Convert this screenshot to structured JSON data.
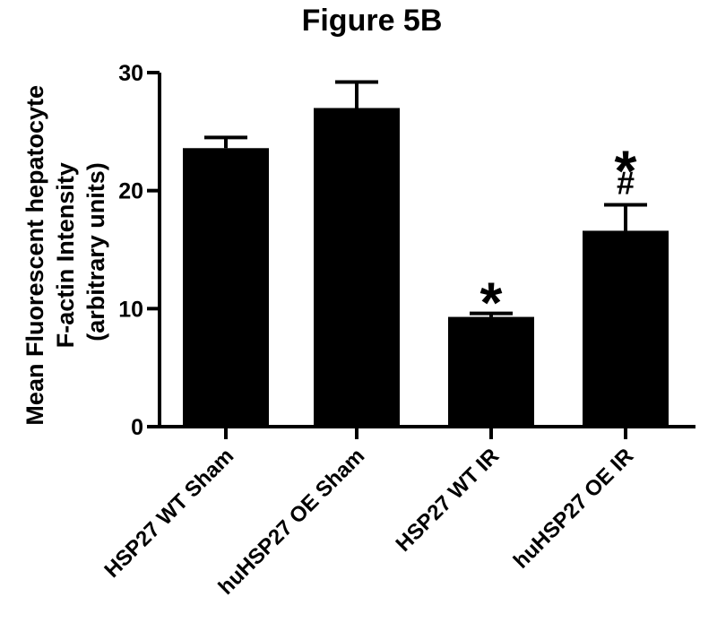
{
  "chart_data": {
    "type": "bar",
    "title": "Figure 5B",
    "ylabel_lines": [
      "Mean Fluorescent hepatocyte",
      "F-actin Intensity",
      "(arbitrary units)"
    ],
    "xlabel": "",
    "categories": [
      "HSP27 WT Sham",
      "huHSP27 OE Sham",
      "HSP27 WT IR",
      "huHSP27 OE IR"
    ],
    "values": [
      23.6,
      27.0,
      9.3,
      16.6
    ],
    "errors": [
      0.9,
      2.2,
      0.3,
      2.2
    ],
    "annotations": [
      {
        "category": "HSP27 WT IR",
        "marks": [
          "*"
        ]
      },
      {
        "category": "huHSP27 OE IR",
        "marks": [
          "*",
          "#"
        ]
      }
    ],
    "ylim": [
      0,
      30
    ],
    "yticks": [
      0,
      10,
      20,
      30
    ],
    "bar_color": "#000000",
    "grid": false,
    "legend": "none"
  }
}
